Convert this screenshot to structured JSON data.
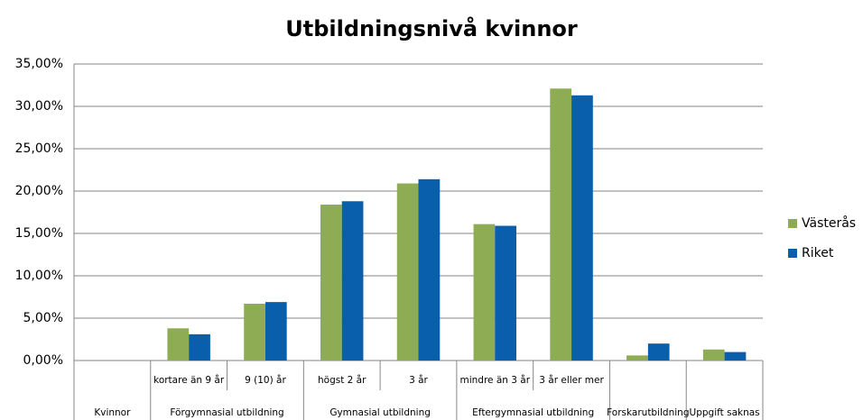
{
  "chart_data": {
    "type": "bar",
    "title": "Utbildningsnivå kvinnor",
    "categories": [
      null,
      "kortare än 9 år",
      "9 (10) år",
      "högst 2 år",
      "3 år",
      "mindre än 3 år",
      "3 år eller mer",
      null,
      null
    ],
    "groups": [
      {
        "name": "Kvinnor",
        "span": 1
      },
      {
        "name": "Förgymnasial utbildning",
        "span": 2
      },
      {
        "name": "Gymnasial utbildning",
        "span": 2
      },
      {
        "name": "Eftergymnasial utbildning",
        "span": 2
      },
      {
        "name": "Forskarutbildning",
        "span": 1
      },
      {
        "name": "Uppgift saknas",
        "span": 1
      }
    ],
    "series": [
      {
        "name": "Västerås",
        "color": "#8eac53",
        "values": [
          null,
          3.8,
          6.7,
          18.4,
          20.9,
          16.1,
          32.1,
          0.6,
          1.3
        ]
      },
      {
        "name": "Riket",
        "color": "#0a5fac",
        "values": [
          null,
          3.1,
          6.9,
          18.8,
          21.4,
          15.9,
          31.3,
          2.0,
          1.0
        ]
      }
    ],
    "ylim": [
      0,
      35
    ],
    "yticks": [
      {
        "value": 0,
        "label": "0,00%"
      },
      {
        "value": 5,
        "label": "5,00%"
      },
      {
        "value": 10,
        "label": "10,00%"
      },
      {
        "value": 15,
        "label": "15,00%"
      },
      {
        "value": 20,
        "label": "20,00%"
      },
      {
        "value": 25,
        "label": "25,00%"
      },
      {
        "value": 30,
        "label": "30,00%"
      },
      {
        "value": 35,
        "label": "35,00%"
      }
    ],
    "grid": true,
    "legend": "right"
  }
}
